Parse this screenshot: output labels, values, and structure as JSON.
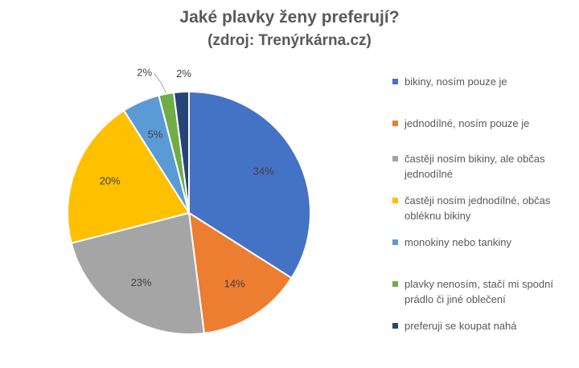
{
  "chart_data": {
    "type": "pie",
    "title": "Jaké plavky ženy preferují?",
    "subtitle": "(zdroj: Trenýrkárna.cz)",
    "start_angle_deg": 0,
    "direction": "clockwise",
    "legend_position": "right",
    "slices": [
      {
        "label": "bikiny, nosím pouze je",
        "value": 34,
        "value_label": "34%",
        "color": "#4472C4"
      },
      {
        "label": "jednodílné, nosím pouze je",
        "value": 14,
        "value_label": "14%",
        "color": "#ED7D31"
      },
      {
        "label": "častěji nosím bikiny, ale občas jednodílné",
        "value": 23,
        "value_label": "23%",
        "color": "#A5A5A5"
      },
      {
        "label": "častěji nosím jednodílné, občas obléknu bikiny",
        "value": 20,
        "value_label": "20%",
        "color": "#FFC000"
      },
      {
        "label": "monokiny nebo tankiny",
        "value": 5,
        "value_label": "5%",
        "color": "#5B9BD5"
      },
      {
        "label": "plavky nenosím, stačí mi spodní prádlo či jiné oblečení",
        "value": 2,
        "value_label": "2%",
        "color": "#70AD47"
      },
      {
        "label": "preferuji se koupat nahá",
        "value": 2,
        "value_label": "2%",
        "color": "#264478"
      }
    ]
  }
}
